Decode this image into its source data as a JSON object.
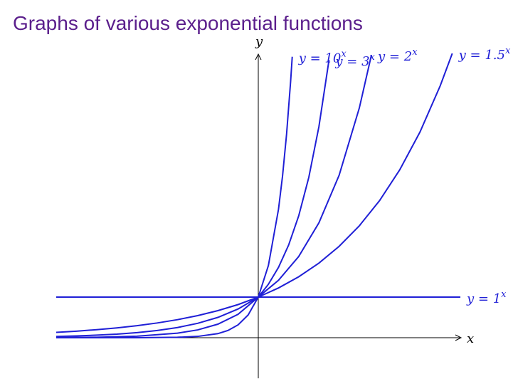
{
  "chart_data": {
    "type": "line",
    "title": "Graphs of various exponential functions",
    "x_label": "x",
    "y_label": "y",
    "xlim": [
      -5,
      5
    ],
    "ylim": [
      -1,
      7
    ],
    "color": "#1f1fd6",
    "series": [
      {
        "name": "y = 10",
        "name_sup": "x",
        "x": [
          -5,
          -3,
          -2,
          -1.5,
          -1,
          -0.75,
          -0.5,
          -0.25,
          0,
          0.25,
          0.5,
          0.6,
          0.7,
          0.8,
          0.84
        ],
        "values": [
          0,
          0.001,
          0.01,
          0.032,
          0.1,
          0.178,
          0.316,
          0.562,
          1,
          1.778,
          3.162,
          3.981,
          5.012,
          6.31,
          6.918
        ]
      },
      {
        "name": "y = 3",
        "name_sup": "x",
        "x": [
          -5,
          -4,
          -3,
          -2,
          -1.5,
          -1,
          -0.5,
          0,
          0.25,
          0.5,
          0.75,
          1,
          1.25,
          1.5,
          1.75
        ],
        "values": [
          0.004,
          0.012,
          0.037,
          0.111,
          0.192,
          0.333,
          0.577,
          1,
          1.316,
          1.732,
          2.28,
          3,
          3.948,
          5.196,
          6.839
        ]
      },
      {
        "name": "y = 2",
        "name_sup": "x",
        "x": [
          -5,
          -4.5,
          -4,
          -3.5,
          -3,
          -2.5,
          -2,
          -1.5,
          -1,
          -0.5,
          0,
          0.5,
          1,
          1.5,
          2,
          2.5,
          2.8
        ],
        "values": [
          0.031,
          0.044,
          0.063,
          0.088,
          0.125,
          0.177,
          0.25,
          0.354,
          0.5,
          0.707,
          1,
          1.414,
          2,
          2.828,
          4,
          5.657,
          6.964
        ]
      },
      {
        "name": "y = 1.5",
        "name_sup": "x",
        "x": [
          -5,
          -4.5,
          -4,
          -3.5,
          -3,
          -2.5,
          -2,
          -1.5,
          -1,
          -0.5,
          0,
          0.5,
          1,
          1.5,
          2,
          2.5,
          3,
          3.5,
          4,
          4.5,
          4.8
        ],
        "values": [
          0.132,
          0.161,
          0.198,
          0.242,
          0.296,
          0.363,
          0.444,
          0.544,
          0.667,
          0.816,
          1,
          1.225,
          1.5,
          1.837,
          2.25,
          2.756,
          3.375,
          4.134,
          5.063,
          6.2,
          7.0
        ]
      },
      {
        "name": "y = 1",
        "name_sup": "x",
        "x": [
          -5,
          5
        ],
        "values": [
          1,
          1
        ]
      }
    ]
  }
}
